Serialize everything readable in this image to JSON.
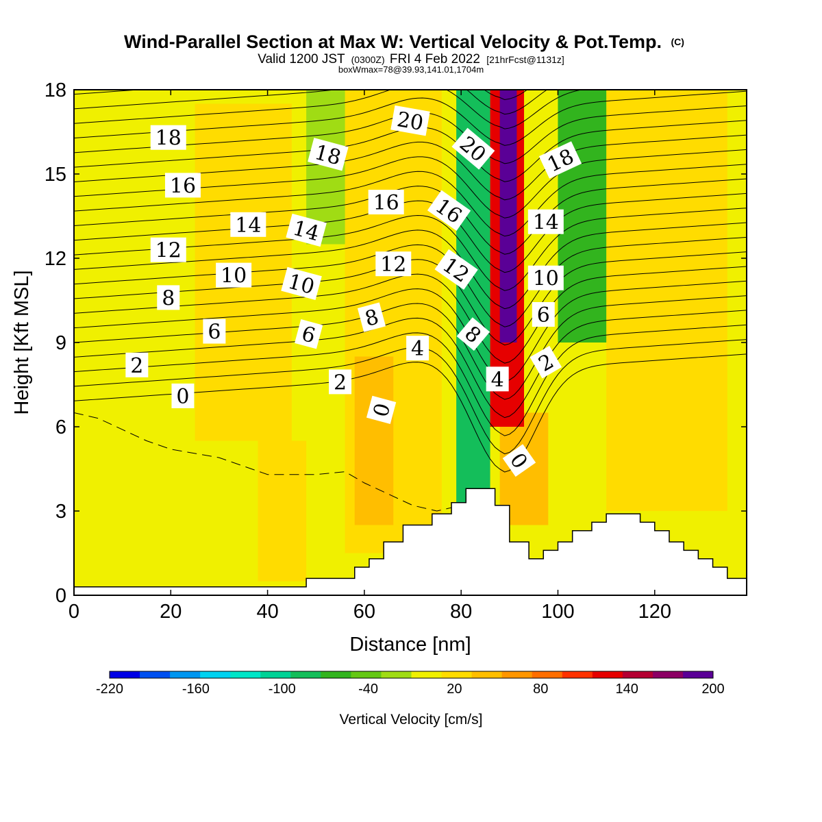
{
  "chart_data": {
    "type": "heatmap",
    "title": "Wind-Parallel Section at Max W: Vertical Velocity & Pot.Temp.",
    "title_mark": "(C)",
    "subtitle_parts": [
      "Valid 1200 JST",
      "(0300Z)",
      "FRI 4 Feb 2022",
      "[21hrFcst@1131z]"
    ],
    "subtitle2": "boxWmax=78@39.93,141.01,1704m",
    "xlabel": "Distance [nm]",
    "ylabel": "Height [Kft MSL]",
    "xlim": [
      0,
      139
    ],
    "ylim": [
      0,
      18
    ],
    "x_ticks": [
      0,
      20,
      40,
      60,
      80,
      100,
      120
    ],
    "y_ticks": [
      0,
      3,
      6,
      9,
      12,
      15,
      18
    ],
    "colorbar": {
      "label": "Vertical Velocity [cm/s]",
      "range": [
        -220,
        200
      ],
      "tick_values": [
        -220,
        -160,
        -100,
        -40,
        20,
        80,
        140,
        200
      ],
      "colors": [
        "#0000e6",
        "#0050f0",
        "#0096f0",
        "#00d2f0",
        "#00e6c8",
        "#00d296",
        "#14be5a",
        "#32b41e",
        "#64c814",
        "#a0dc14",
        "#f0f000",
        "#ffdc00",
        "#ffbe00",
        "#ff9600",
        "#ff6e00",
        "#ff3200",
        "#e60000",
        "#b40032",
        "#8c0064",
        "#5a0096"
      ]
    },
    "terrain": [
      [
        0,
        0.3
      ],
      [
        48,
        0.3
      ],
      [
        48,
        0.6
      ],
      [
        58,
        0.6
      ],
      [
        58,
        1.0
      ],
      [
        61,
        1.0
      ],
      [
        61,
        1.3
      ],
      [
        64,
        1.3
      ],
      [
        64,
        1.9
      ],
      [
        68,
        1.9
      ],
      [
        68,
        2.5
      ],
      [
        74,
        2.5
      ],
      [
        74,
        2.9
      ],
      [
        78,
        2.9
      ],
      [
        78,
        3.3
      ],
      [
        81,
        3.3
      ],
      [
        81,
        3.8
      ],
      [
        87,
        3.8
      ],
      [
        87,
        3.2
      ],
      [
        90,
        3.2
      ],
      [
        90,
        1.9
      ],
      [
        94,
        1.9
      ],
      [
        94,
        1.3
      ],
      [
        97,
        1.3
      ],
      [
        97,
        1.6
      ],
      [
        100,
        1.6
      ],
      [
        100,
        1.9
      ],
      [
        103,
        1.9
      ],
      [
        103,
        2.3
      ],
      [
        107,
        2.3
      ],
      [
        107,
        2.6
      ],
      [
        110,
        2.6
      ],
      [
        110,
        2.9
      ],
      [
        117,
        2.9
      ],
      [
        117,
        2.6
      ],
      [
        120,
        2.6
      ],
      [
        120,
        2.3
      ],
      [
        123,
        2.3
      ],
      [
        123,
        1.9
      ],
      [
        126,
        1.9
      ],
      [
        126,
        1.6
      ],
      [
        129,
        1.6
      ],
      [
        129,
        1.3
      ],
      [
        132,
        1.3
      ],
      [
        132,
        1.0
      ],
      [
        135,
        1.0
      ],
      [
        135,
        0.6
      ],
      [
        139,
        0.6
      ]
    ],
    "velocity_field": [
      {
        "x": 0,
        "y": 0,
        "w": 139,
        "h": 18,
        "value": 5
      },
      {
        "x": 25,
        "y": 5.5,
        "w": 20,
        "h": 12,
        "value": 25
      },
      {
        "x": 38,
        "y": 0.5,
        "w": 10,
        "h": 5,
        "value": 30
      },
      {
        "x": 56,
        "y": 1.5,
        "w": 20,
        "h": 16.5,
        "value": 30
      },
      {
        "x": 58,
        "y": 2.5,
        "w": 8,
        "h": 6,
        "value": 50
      },
      {
        "x": 48,
        "y": 12.5,
        "w": 8,
        "h": 5.5,
        "value": -30
      },
      {
        "x": 110,
        "y": 3,
        "w": 25,
        "h": 15,
        "value": 30
      },
      {
        "x": 88,
        "y": 2.5,
        "w": 10,
        "h": 4,
        "value": 40
      },
      {
        "x": 79,
        "y": 3,
        "w": 7,
        "h": 15,
        "value": -80
      },
      {
        "x": 100,
        "y": 9,
        "w": 10,
        "h": 9,
        "value": -60
      },
      {
        "x": 86,
        "y": 6,
        "w": 7,
        "h": 12,
        "value": 120
      },
      {
        "x": 88,
        "y": 9,
        "w": 3.5,
        "h": 9,
        "value": 180
      }
    ],
    "theta_levels": [
      0,
      1,
      2,
      3,
      4,
      5,
      6,
      7,
      8,
      9,
      10,
      11,
      12,
      13,
      14,
      15,
      16,
      17,
      18,
      19,
      20,
      21
    ],
    "zero_dashed_path": [
      [
        0,
        6.5
      ],
      [
        5,
        6.3
      ],
      [
        10,
        5.9
      ],
      [
        15,
        5.5
      ],
      [
        20,
        5.2
      ],
      [
        30,
        4.9
      ],
      [
        40,
        4.3
      ],
      [
        50,
        4.3
      ],
      [
        56,
        4.4
      ],
      [
        60,
        4.0
      ],
      [
        65,
        3.6
      ],
      [
        70,
        3.2
      ],
      [
        75,
        3.0
      ],
      [
        80,
        3.2
      ]
    ],
    "contour_labels": [
      {
        "text": "18",
        "x": 19.5,
        "y": 16.3,
        "rot": 0
      },
      {
        "text": "16",
        "x": 22.5,
        "y": 14.6,
        "rot": 0
      },
      {
        "text": "14",
        "x": 36,
        "y": 13.2,
        "rot": 0
      },
      {
        "text": "12",
        "x": 19.5,
        "y": 12.3,
        "rot": 0
      },
      {
        "text": "10",
        "x": 33,
        "y": 11.4,
        "rot": 0
      },
      {
        "text": "8",
        "x": 19.5,
        "y": 10.6,
        "rot": 0
      },
      {
        "text": "6",
        "x": 29,
        "y": 9.4,
        "rot": 0
      },
      {
        "text": "2",
        "x": 13,
        "y": 8.2,
        "rot": 0
      },
      {
        "text": "0",
        "x": 22.5,
        "y": 7.1,
        "rot": 0
      },
      {
        "text": "18",
        "x": 52.5,
        "y": 15.7,
        "rot": 15
      },
      {
        "text": "14",
        "x": 48,
        "y": 13.0,
        "rot": 15
      },
      {
        "text": "10",
        "x": 47,
        "y": 11.1,
        "rot": 15
      },
      {
        "text": "6",
        "x": 48.5,
        "y": 9.3,
        "rot": 15
      },
      {
        "text": "2",
        "x": 55,
        "y": 7.6,
        "rot": 0
      },
      {
        "text": "20",
        "x": 69.5,
        "y": 16.9,
        "rot": 10
      },
      {
        "text": "16",
        "x": 64.5,
        "y": 14.0,
        "rot": 0
      },
      {
        "text": "12",
        "x": 66,
        "y": 11.8,
        "rot": 0
      },
      {
        "text": "8",
        "x": 61.5,
        "y": 9.9,
        "rot": -15
      },
      {
        "text": "4",
        "x": 71,
        "y": 8.8,
        "rot": 0
      },
      {
        "text": "0",
        "x": 63.5,
        "y": 6.6,
        "rot": -75
      },
      {
        "text": "20",
        "x": 82.5,
        "y": 15.9,
        "rot": 40
      },
      {
        "text": "16",
        "x": 77.5,
        "y": 13.7,
        "rot": 35
      },
      {
        "text": "12",
        "x": 79,
        "y": 11.6,
        "rot": 35
      },
      {
        "text": "8",
        "x": 82.5,
        "y": 9.3,
        "rot": 40
      },
      {
        "text": "4",
        "x": 87.5,
        "y": 7.7,
        "rot": 0
      },
      {
        "text": "0",
        "x": 92,
        "y": 4.8,
        "rot": 55
      },
      {
        "text": "18",
        "x": 100.5,
        "y": 15.5,
        "rot": -25
      },
      {
        "text": "14",
        "x": 97.5,
        "y": 13.3,
        "rot": 0
      },
      {
        "text": "10",
        "x": 97.5,
        "y": 11.3,
        "rot": 0
      },
      {
        "text": "6",
        "x": 97,
        "y": 10.0,
        "rot": 0
      },
      {
        "text": "2",
        "x": 97.5,
        "y": 8.3,
        "rot": -30
      }
    ]
  }
}
